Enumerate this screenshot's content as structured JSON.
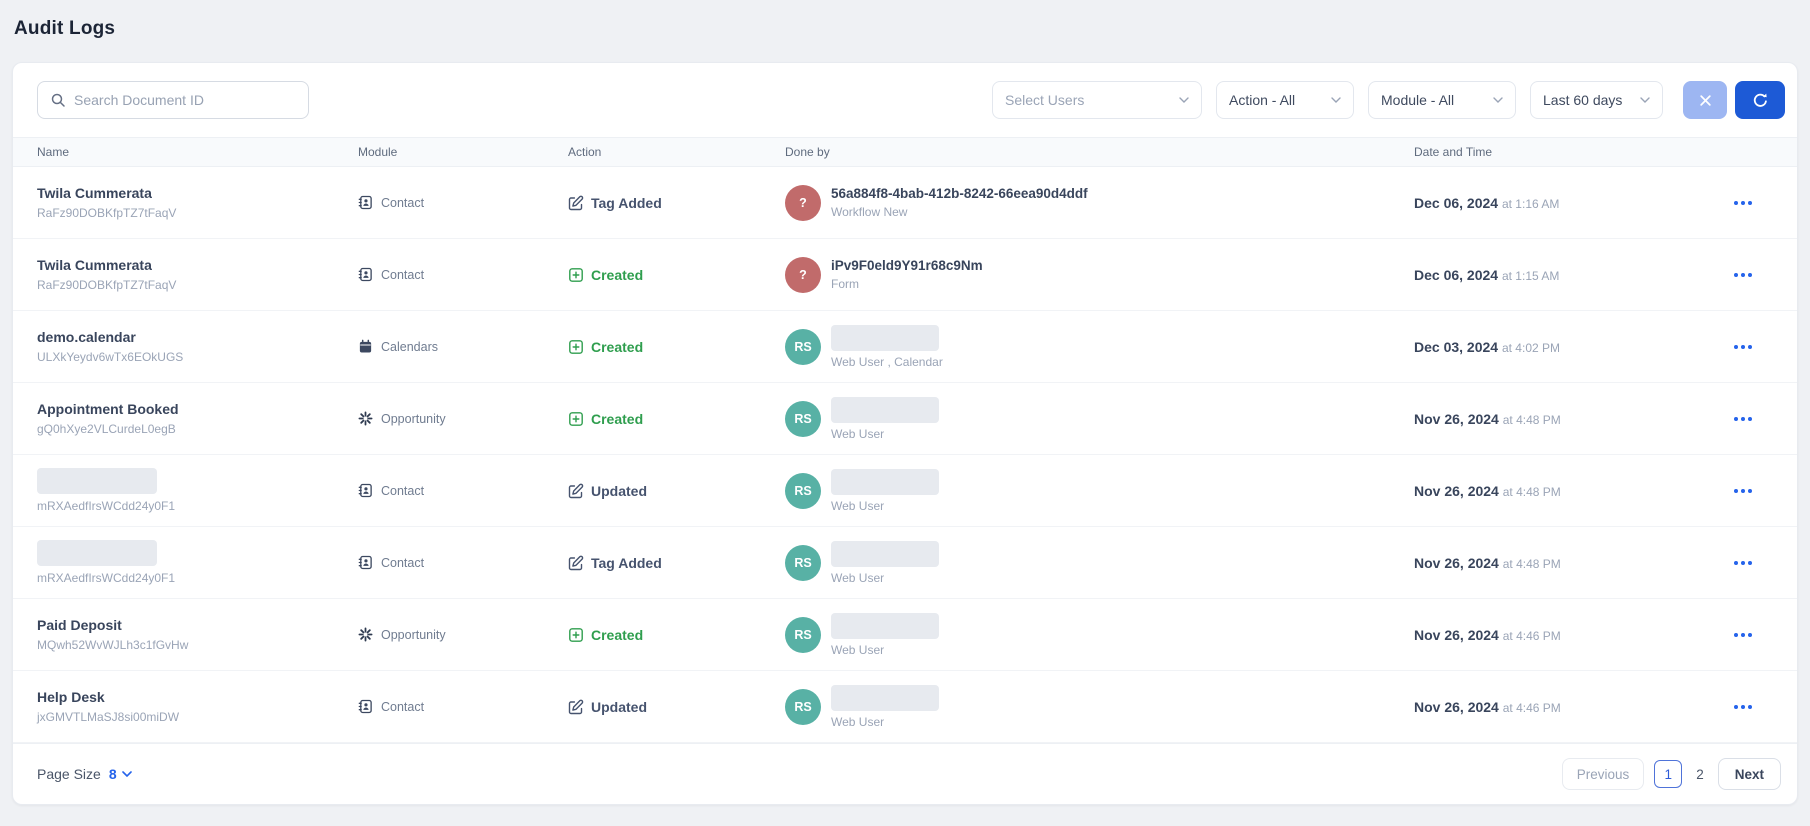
{
  "page": {
    "title": "Audit Logs"
  },
  "colors": {
    "accent_blue": "#1d5ad6",
    "light_blue": "#9db6f2",
    "kebab_blue": "#2563eb",
    "created_green": "#2f9e4e",
    "neutral_action": "#46536e",
    "avatar_red": "#c16b6b",
    "avatar_teal": "#58b1a5"
  },
  "toolbar": {
    "search": {
      "placeholder": "Search Document ID",
      "value": "",
      "icon": "search-icon"
    },
    "filters": [
      {
        "label": "Select Users",
        "muted": true,
        "icon": "chevron-down-icon"
      },
      {
        "label": "Action - All",
        "muted": false,
        "icon": "chevron-down-icon"
      },
      {
        "label": "Module - All",
        "muted": false,
        "icon": "chevron-down-icon"
      },
      {
        "label": "Last 60 days",
        "muted": false,
        "icon": "chevron-down-icon"
      }
    ],
    "clear_button_icon": "x-icon",
    "refresh_button_icon": "refresh-icon"
  },
  "table": {
    "columns": [
      "Name",
      "Module",
      "Action",
      "Done by",
      "Date and Time"
    ],
    "rows": [
      {
        "name": "Twila Cummerata",
        "name_redacted": false,
        "doc_id": "RaFz90DOBKfpTZ7tFaqV",
        "module": {
          "icon": "contact-icon",
          "label": "Contact"
        },
        "action": {
          "icon": "edit-icon",
          "label": "Tag Added",
          "color": "slate"
        },
        "done_by": {
          "avatar": {
            "kind": "question",
            "text": "?"
          },
          "name": "56a884f8-4bab-412b-8242-66eea90d4ddf",
          "name_redacted": false,
          "detail": "Workflow New"
        },
        "date": "Dec 06, 2024",
        "time": "at 1:16 AM"
      },
      {
        "name": "Twila Cummerata",
        "name_redacted": false,
        "doc_id": "RaFz90DOBKfpTZ7tFaqV",
        "module": {
          "icon": "contact-icon",
          "label": "Contact"
        },
        "action": {
          "icon": "plus-square-icon",
          "label": "Created",
          "color": "green"
        },
        "done_by": {
          "avatar": {
            "kind": "question",
            "text": "?"
          },
          "name": "iPv9F0eld9Y91r68c9Nm",
          "name_redacted": false,
          "detail": "Form"
        },
        "date": "Dec 06, 2024",
        "time": "at 1:15 AM"
      },
      {
        "name": "demo.calendar",
        "name_redacted": false,
        "doc_id": "ULXkYeydv6wTx6EOkUGS",
        "module": {
          "icon": "calendar-icon",
          "label": "Calendars"
        },
        "action": {
          "icon": "plus-square-icon",
          "label": "Created",
          "color": "green"
        },
        "done_by": {
          "avatar": {
            "kind": "initials",
            "text": "RS"
          },
          "name": "",
          "name_redacted": true,
          "detail": "Web User , Calendar"
        },
        "date": "Dec 03, 2024",
        "time": "at 4:02 PM"
      },
      {
        "name": "Appointment Booked",
        "name_redacted": false,
        "doc_id": "gQ0hXye2VLCurdeL0egB",
        "module": {
          "icon": "opportunity-icon",
          "label": "Opportunity"
        },
        "action": {
          "icon": "plus-square-icon",
          "label": "Created",
          "color": "green"
        },
        "done_by": {
          "avatar": {
            "kind": "initials",
            "text": "RS"
          },
          "name": "",
          "name_redacted": true,
          "detail": "Web User"
        },
        "date": "Nov 26, 2024",
        "time": "at 4:48 PM"
      },
      {
        "name": "",
        "name_redacted": true,
        "doc_id": "mRXAedfIrsWCdd24y0F1",
        "module": {
          "icon": "contact-icon",
          "label": "Contact"
        },
        "action": {
          "icon": "edit-icon",
          "label": "Updated",
          "color": "slate"
        },
        "done_by": {
          "avatar": {
            "kind": "initials",
            "text": "RS"
          },
          "name": "",
          "name_redacted": true,
          "detail": "Web User"
        },
        "date": "Nov 26, 2024",
        "time": "at 4:48 PM"
      },
      {
        "name": "",
        "name_redacted": true,
        "doc_id": "mRXAedfIrsWCdd24y0F1",
        "module": {
          "icon": "contact-icon",
          "label": "Contact"
        },
        "action": {
          "icon": "edit-icon",
          "label": "Tag Added",
          "color": "slate"
        },
        "done_by": {
          "avatar": {
            "kind": "initials",
            "text": "RS"
          },
          "name": "",
          "name_redacted": true,
          "detail": "Web User"
        },
        "date": "Nov 26, 2024",
        "time": "at 4:48 PM"
      },
      {
        "name": "Paid Deposit",
        "name_redacted": false,
        "doc_id": "MQwh52WvWJLh3c1fGvHw",
        "module": {
          "icon": "opportunity-icon",
          "label": "Opportunity"
        },
        "action": {
          "icon": "plus-square-icon",
          "label": "Created",
          "color": "green"
        },
        "done_by": {
          "avatar": {
            "kind": "initials",
            "text": "RS"
          },
          "name": "",
          "name_redacted": true,
          "detail": "Web User"
        },
        "date": "Nov 26, 2024",
        "time": "at 4:46 PM"
      },
      {
        "name": "Help Desk",
        "name_redacted": false,
        "doc_id": "jxGMVTLMaSJ8si00miDW",
        "module": {
          "icon": "contact-icon",
          "label": "Contact"
        },
        "action": {
          "icon": "edit-icon",
          "label": "Updated",
          "color": "slate"
        },
        "done_by": {
          "avatar": {
            "kind": "initials",
            "text": "RS"
          },
          "name": "",
          "name_redacted": true,
          "detail": "Web User"
        },
        "date": "Nov 26, 2024",
        "time": "at 4:46 PM"
      }
    ]
  },
  "footer": {
    "page_size_label": "Page Size",
    "page_size_value": "8",
    "pagination": {
      "previous": "Previous",
      "pages": [
        "1",
        "2"
      ],
      "current_page": "1",
      "next": "Next"
    }
  }
}
